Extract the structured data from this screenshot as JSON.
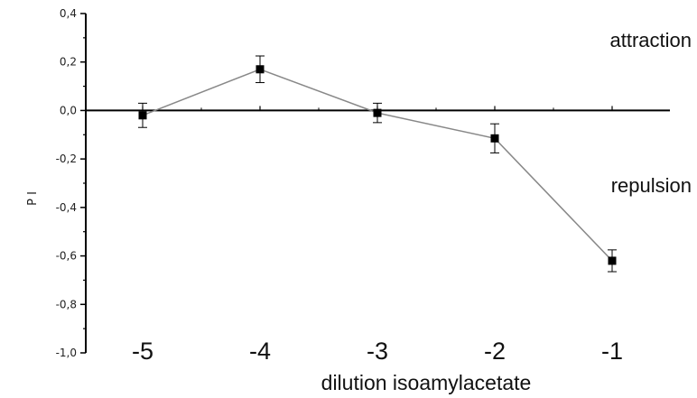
{
  "chart_data": {
    "type": "line",
    "x": [
      "-5",
      "-4",
      "-3",
      "-2",
      "-1"
    ],
    "series": [
      {
        "values": [
          -0.02,
          0.17,
          -0.01,
          -0.115,
          -0.62
        ],
        "errors": [
          0.05,
          0.055,
          0.04,
          0.06,
          0.045
        ]
      }
    ],
    "xlabel": "dilution isoamylacetate",
    "ylabel": "P I",
    "ylim": [
      -1.0,
      0.4
    ],
    "yticks": [
      "-1,0",
      "-0,8",
      "-0,6",
      "-0,4",
      "-0,2",
      "0,0",
      "0,2",
      "0,4"
    ],
    "annotations": [
      "attraction",
      "repulsion"
    ],
    "grid": false,
    "colors": {
      "line": "#888888",
      "marker": "#000000",
      "axis": "#000000"
    }
  }
}
